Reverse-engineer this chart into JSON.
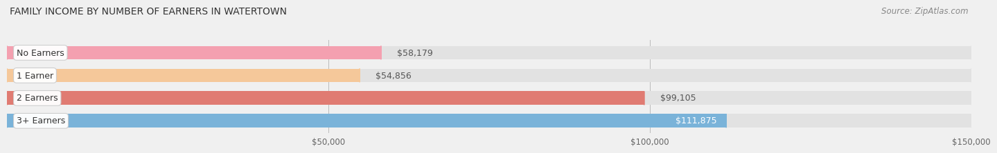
{
  "title": "FAMILY INCOME BY NUMBER OF EARNERS IN WATERTOWN",
  "source": "Source: ZipAtlas.com",
  "categories": [
    "No Earners",
    "1 Earner",
    "2 Earners",
    "3+ Earners"
  ],
  "values": [
    58179,
    54856,
    99105,
    111875
  ],
  "bar_colors": [
    "#f4a0b0",
    "#f5c89a",
    "#e07b72",
    "#7ab3d9"
  ],
  "label_colors": [
    "#555555",
    "#555555",
    "#555555",
    "#ffffff"
  ],
  "label_texts": [
    "$58,179",
    "$54,856",
    "$99,105",
    "$111,875"
  ],
  "xlim": [
    0,
    150000
  ],
  "xticks": [
    50000,
    100000,
    150000
  ],
  "xtick_labels": [
    "$50,000",
    "$100,000",
    "$150,000"
  ],
  "background_color": "#f0f0f0",
  "bar_background_color": "#e2e2e2",
  "title_fontsize": 10,
  "source_fontsize": 8.5,
  "label_fontsize": 9,
  "category_fontsize": 9
}
